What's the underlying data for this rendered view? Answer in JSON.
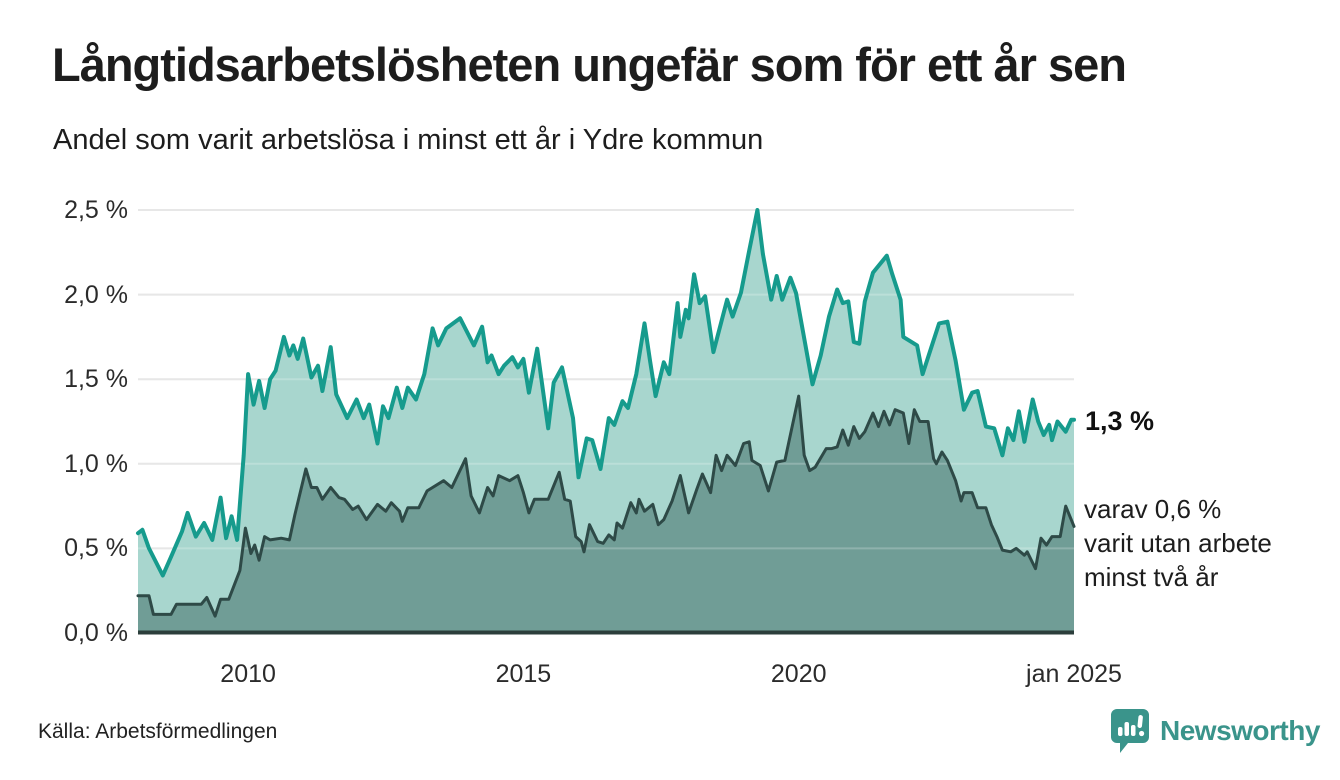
{
  "title": "Långtidsarbetslösheten ungefär som för ett år sen",
  "subtitle": "Andel som varit arbetslösa i minst ett år i Ydre kommun",
  "source_note": "Källa: Arbetsförmedlingen",
  "logo": {
    "text": "Newsworthy",
    "icon": "speech-bubble-bar-chart-icon"
  },
  "annotations": {
    "total_end_label": "1,3 %",
    "two_year_end_lines": [
      "varav 0,6 %",
      "varit utan arbete",
      "minst två år"
    ]
  },
  "colors": {
    "background": "#ffffff",
    "text": "#1d1d1d",
    "grid": "#e0e0e0",
    "total_line": "#169b8d",
    "total_fill": "#a8d6ce",
    "two_year_line": "#2e4a47",
    "two_year_fill": "#709d96",
    "baseline": "#2c3e3b",
    "logo_teal": "#3a948b"
  },
  "chart_data": {
    "type": "area",
    "unit": "%",
    "x_axis": {
      "range": [
        2008.0,
        2025.05
      ],
      "ticks": [
        {
          "year": 2010,
          "label": "2010"
        },
        {
          "year": 2015,
          "label": "2015"
        },
        {
          "year": 2020,
          "label": "2020"
        },
        {
          "year": 2025,
          "label": "jan 2025"
        }
      ]
    },
    "y_axis": {
      "range": [
        0,
        2.5
      ],
      "grid": true,
      "ticks": [
        {
          "value": 0.0,
          "label": "0,0 %"
        },
        {
          "value": 0.5,
          "label": "0,5 %"
        },
        {
          "value": 1.0,
          "label": "1,0 %"
        },
        {
          "value": 1.5,
          "label": "1,5 %"
        },
        {
          "value": 2.0,
          "label": "2,0 %"
        },
        {
          "value": 2.5,
          "label": "2,5 %"
        }
      ]
    },
    "series": [
      {
        "name": "Andel arbetslösa minst ett år",
        "end_value_label": "1,3 %",
        "line_color": "#169b8d",
        "fill_color": "#a8d6ce",
        "points": [
          [
            2008.0,
            0.59
          ],
          [
            2008.08,
            0.61
          ],
          [
            2008.2,
            0.5
          ],
          [
            2008.45,
            0.34
          ],
          [
            2008.6,
            0.45
          ],
          [
            2008.8,
            0.6
          ],
          [
            2008.9,
            0.71
          ],
          [
            2009.05,
            0.57
          ],
          [
            2009.2,
            0.65
          ],
          [
            2009.35,
            0.55
          ],
          [
            2009.5,
            0.8
          ],
          [
            2009.6,
            0.56
          ],
          [
            2009.7,
            0.69
          ],
          [
            2009.8,
            0.55
          ],
          [
            2009.92,
            1.05
          ],
          [
            2010.0,
            1.53
          ],
          [
            2010.1,
            1.35
          ],
          [
            2010.2,
            1.49
          ],
          [
            2010.3,
            1.33
          ],
          [
            2010.4,
            1.5
          ],
          [
            2010.5,
            1.55
          ],
          [
            2010.65,
            1.75
          ],
          [
            2010.75,
            1.64
          ],
          [
            2010.82,
            1.7
          ],
          [
            2010.9,
            1.62
          ],
          [
            2011.0,
            1.74
          ],
          [
            2011.15,
            1.51
          ],
          [
            2011.27,
            1.58
          ],
          [
            2011.35,
            1.43
          ],
          [
            2011.5,
            1.69
          ],
          [
            2011.6,
            1.41
          ],
          [
            2011.8,
            1.27
          ],
          [
            2011.97,
            1.38
          ],
          [
            2012.1,
            1.27
          ],
          [
            2012.2,
            1.35
          ],
          [
            2012.35,
            1.12
          ],
          [
            2012.45,
            1.34
          ],
          [
            2012.55,
            1.27
          ],
          [
            2012.7,
            1.45
          ],
          [
            2012.8,
            1.33
          ],
          [
            2012.9,
            1.45
          ],
          [
            2013.05,
            1.38
          ],
          [
            2013.2,
            1.53
          ],
          [
            2013.35,
            1.8
          ],
          [
            2013.45,
            1.7
          ],
          [
            2013.6,
            1.8
          ],
          [
            2013.85,
            1.86
          ],
          [
            2014.1,
            1.7
          ],
          [
            2014.25,
            1.81
          ],
          [
            2014.35,
            1.6
          ],
          [
            2014.42,
            1.64
          ],
          [
            2014.55,
            1.53
          ],
          [
            2014.65,
            1.58
          ],
          [
            2014.8,
            1.63
          ],
          [
            2014.9,
            1.57
          ],
          [
            2015.0,
            1.62
          ],
          [
            2015.1,
            1.42
          ],
          [
            2015.25,
            1.68
          ],
          [
            2015.45,
            1.21
          ],
          [
            2015.55,
            1.48
          ],
          [
            2015.7,
            1.57
          ],
          [
            2015.9,
            1.27
          ],
          [
            2016.0,
            0.92
          ],
          [
            2016.15,
            1.15
          ],
          [
            2016.25,
            1.14
          ],
          [
            2016.4,
            0.97
          ],
          [
            2016.55,
            1.27
          ],
          [
            2016.65,
            1.23
          ],
          [
            2016.8,
            1.37
          ],
          [
            2016.9,
            1.33
          ],
          [
            2017.05,
            1.53
          ],
          [
            2017.2,
            1.83
          ],
          [
            2017.3,
            1.61
          ],
          [
            2017.4,
            1.4
          ],
          [
            2017.55,
            1.6
          ],
          [
            2017.65,
            1.53
          ],
          [
            2017.8,
            1.95
          ],
          [
            2017.85,
            1.75
          ],
          [
            2017.95,
            1.91
          ],
          [
            2018.0,
            1.86
          ],
          [
            2018.1,
            2.12
          ],
          [
            2018.2,
            1.95
          ],
          [
            2018.3,
            1.99
          ],
          [
            2018.45,
            1.66
          ],
          [
            2018.7,
            1.97
          ],
          [
            2018.8,
            1.87
          ],
          [
            2018.95,
            2.01
          ],
          [
            2019.1,
            2.26
          ],
          [
            2019.25,
            2.5
          ],
          [
            2019.35,
            2.24
          ],
          [
            2019.5,
            1.97
          ],
          [
            2019.6,
            2.11
          ],
          [
            2019.7,
            1.97
          ],
          [
            2019.85,
            2.1
          ],
          [
            2019.95,
            2.01
          ],
          [
            2020.25,
            1.47
          ],
          [
            2020.4,
            1.64
          ],
          [
            2020.55,
            1.87
          ],
          [
            2020.7,
            2.03
          ],
          [
            2020.8,
            1.95
          ],
          [
            2020.9,
            1.96
          ],
          [
            2021.0,
            1.72
          ],
          [
            2021.1,
            1.71
          ],
          [
            2021.2,
            1.96
          ],
          [
            2021.35,
            2.13
          ],
          [
            2021.6,
            2.23
          ],
          [
            2021.7,
            2.12
          ],
          [
            2021.85,
            1.97
          ],
          [
            2021.9,
            1.75
          ],
          [
            2022.0,
            1.73
          ],
          [
            2022.15,
            1.7
          ],
          [
            2022.25,
            1.53
          ],
          [
            2022.55,
            1.83
          ],
          [
            2022.7,
            1.84
          ],
          [
            2022.85,
            1.61
          ],
          [
            2023.0,
            1.32
          ],
          [
            2023.15,
            1.42
          ],
          [
            2023.25,
            1.43
          ],
          [
            2023.4,
            1.22
          ],
          [
            2023.55,
            1.21
          ],
          [
            2023.7,
            1.05
          ],
          [
            2023.8,
            1.21
          ],
          [
            2023.9,
            1.14
          ],
          [
            2024.0,
            1.31
          ],
          [
            2024.1,
            1.13
          ],
          [
            2024.25,
            1.38
          ],
          [
            2024.35,
            1.25
          ],
          [
            2024.45,
            1.17
          ],
          [
            2024.55,
            1.23
          ],
          [
            2024.6,
            1.14
          ],
          [
            2024.7,
            1.25
          ],
          [
            2024.85,
            1.19
          ],
          [
            2024.95,
            1.26
          ],
          [
            2025.0,
            1.26
          ]
        ]
      },
      {
        "name": "varav utan arbete minst två år",
        "end_value_label": "varav 0,6 %",
        "line_color": "#2e4a47",
        "fill_color": "#709d96",
        "points": [
          [
            2008.0,
            0.22
          ],
          [
            2008.2,
            0.22
          ],
          [
            2008.28,
            0.11
          ],
          [
            2008.6,
            0.11
          ],
          [
            2008.7,
            0.17
          ],
          [
            2009.15,
            0.17
          ],
          [
            2009.25,
            0.21
          ],
          [
            2009.4,
            0.1
          ],
          [
            2009.5,
            0.2
          ],
          [
            2009.65,
            0.2
          ],
          [
            2009.85,
            0.37
          ],
          [
            2009.95,
            0.62
          ],
          [
            2010.05,
            0.47
          ],
          [
            2010.12,
            0.52
          ],
          [
            2010.2,
            0.43
          ],
          [
            2010.3,
            0.57
          ],
          [
            2010.4,
            0.55
          ],
          [
            2010.6,
            0.56
          ],
          [
            2010.75,
            0.55
          ],
          [
            2010.85,
            0.7
          ],
          [
            2011.05,
            0.97
          ],
          [
            2011.15,
            0.86
          ],
          [
            2011.25,
            0.86
          ],
          [
            2011.35,
            0.79
          ],
          [
            2011.5,
            0.86
          ],
          [
            2011.65,
            0.8
          ],
          [
            2011.75,
            0.79
          ],
          [
            2011.9,
            0.73
          ],
          [
            2012.0,
            0.75
          ],
          [
            2012.15,
            0.67
          ],
          [
            2012.35,
            0.76
          ],
          [
            2012.5,
            0.72
          ],
          [
            2012.6,
            0.77
          ],
          [
            2012.75,
            0.72
          ],
          [
            2012.8,
            0.66
          ],
          [
            2012.9,
            0.74
          ],
          [
            2013.1,
            0.74
          ],
          [
            2013.25,
            0.84
          ],
          [
            2013.55,
            0.9
          ],
          [
            2013.7,
            0.86
          ],
          [
            2013.95,
            1.03
          ],
          [
            2014.05,
            0.81
          ],
          [
            2014.2,
            0.71
          ],
          [
            2014.35,
            0.86
          ],
          [
            2014.45,
            0.81
          ],
          [
            2014.55,
            0.93
          ],
          [
            2014.75,
            0.9
          ],
          [
            2014.9,
            0.93
          ],
          [
            2015.0,
            0.83
          ],
          [
            2015.1,
            0.71
          ],
          [
            2015.2,
            0.79
          ],
          [
            2015.45,
            0.79
          ],
          [
            2015.65,
            0.95
          ],
          [
            2015.75,
            0.79
          ],
          [
            2015.85,
            0.78
          ],
          [
            2015.95,
            0.57
          ],
          [
            2016.05,
            0.54
          ],
          [
            2016.1,
            0.48
          ],
          [
            2016.2,
            0.64
          ],
          [
            2016.35,
            0.54
          ],
          [
            2016.45,
            0.53
          ],
          [
            2016.55,
            0.58
          ],
          [
            2016.65,
            0.55
          ],
          [
            2016.7,
            0.65
          ],
          [
            2016.8,
            0.62
          ],
          [
            2016.95,
            0.77
          ],
          [
            2017.05,
            0.71
          ],
          [
            2017.1,
            0.79
          ],
          [
            2017.2,
            0.72
          ],
          [
            2017.35,
            0.76
          ],
          [
            2017.45,
            0.64
          ],
          [
            2017.55,
            0.67
          ],
          [
            2017.7,
            0.78
          ],
          [
            2017.85,
            0.93
          ],
          [
            2018.0,
            0.71
          ],
          [
            2018.15,
            0.85
          ],
          [
            2018.25,
            0.94
          ],
          [
            2018.4,
            0.83
          ],
          [
            2018.5,
            1.05
          ],
          [
            2018.6,
            0.96
          ],
          [
            2018.7,
            1.05
          ],
          [
            2018.85,
            0.99
          ],
          [
            2019.0,
            1.12
          ],
          [
            2019.1,
            1.13
          ],
          [
            2019.15,
            1.02
          ],
          [
            2019.3,
            0.99
          ],
          [
            2019.45,
            0.84
          ],
          [
            2019.6,
            1.01
          ],
          [
            2019.75,
            1.02
          ],
          [
            2020.0,
            1.4
          ],
          [
            2020.1,
            1.05
          ],
          [
            2020.2,
            0.96
          ],
          [
            2020.3,
            0.98
          ],
          [
            2020.5,
            1.09
          ],
          [
            2020.6,
            1.09
          ],
          [
            2020.7,
            1.1
          ],
          [
            2020.8,
            1.2
          ],
          [
            2020.9,
            1.11
          ],
          [
            2021.0,
            1.22
          ],
          [
            2021.1,
            1.15
          ],
          [
            2021.2,
            1.19
          ],
          [
            2021.35,
            1.3
          ],
          [
            2021.45,
            1.22
          ],
          [
            2021.55,
            1.31
          ],
          [
            2021.65,
            1.23
          ],
          [
            2021.75,
            1.32
          ],
          [
            2021.9,
            1.3
          ],
          [
            2022.0,
            1.12
          ],
          [
            2022.1,
            1.32
          ],
          [
            2022.2,
            1.25
          ],
          [
            2022.35,
            1.25
          ],
          [
            2022.45,
            1.03
          ],
          [
            2022.5,
            1.0
          ],
          [
            2022.6,
            1.07
          ],
          [
            2022.7,
            1.02
          ],
          [
            2022.85,
            0.9
          ],
          [
            2022.95,
            0.78
          ],
          [
            2023.0,
            0.83
          ],
          [
            2023.15,
            0.83
          ],
          [
            2023.25,
            0.74
          ],
          [
            2023.4,
            0.74
          ],
          [
            2023.5,
            0.64
          ],
          [
            2023.6,
            0.57
          ],
          [
            2023.7,
            0.49
          ],
          [
            2023.85,
            0.48
          ],
          [
            2023.95,
            0.5
          ],
          [
            2024.1,
            0.46
          ],
          [
            2024.15,
            0.48
          ],
          [
            2024.3,
            0.38
          ],
          [
            2024.4,
            0.56
          ],
          [
            2024.5,
            0.52
          ],
          [
            2024.6,
            0.57
          ],
          [
            2024.75,
            0.57
          ],
          [
            2024.85,
            0.75
          ],
          [
            2025.0,
            0.63
          ]
        ]
      }
    ]
  }
}
